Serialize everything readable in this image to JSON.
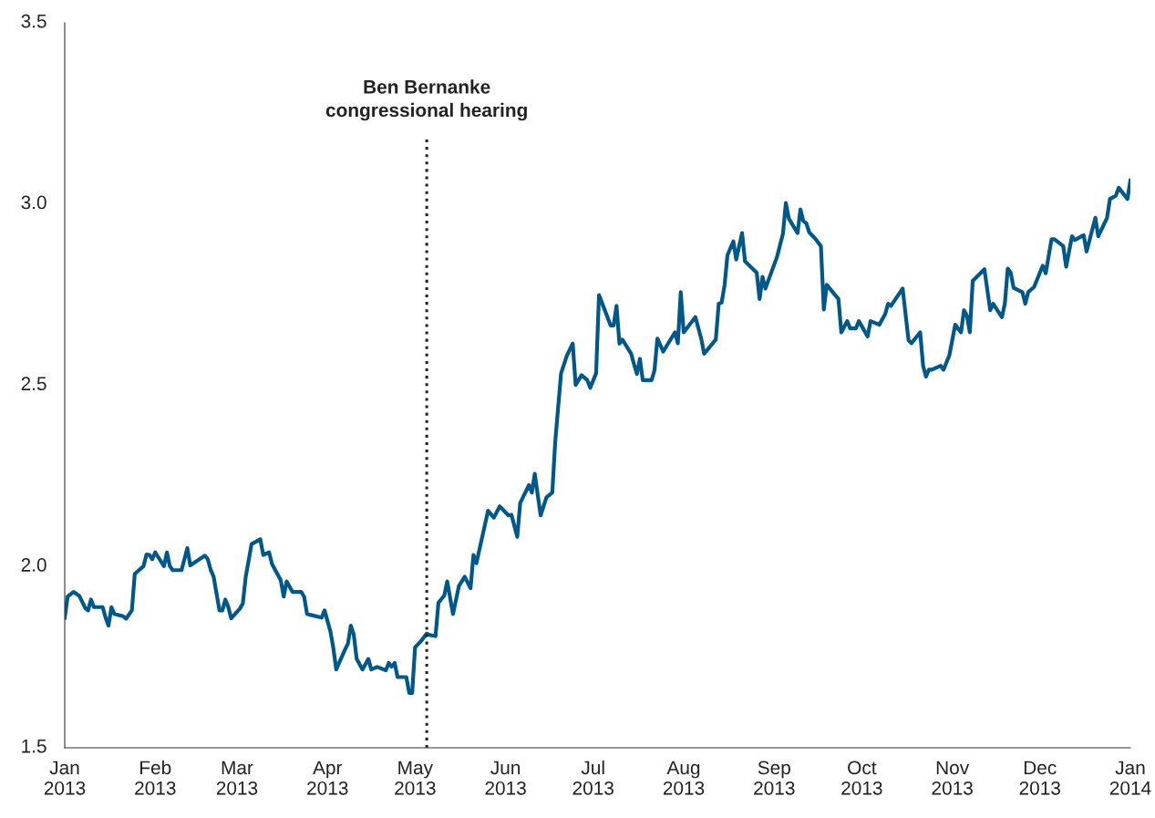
{
  "chart_data": {
    "type": "line",
    "x": [
      "2013-01-01",
      "2013-01-02",
      "2013-01-04",
      "2013-01-06",
      "2013-01-08",
      "2013-01-09",
      "2013-01-10",
      "2013-01-11",
      "2013-01-14",
      "2013-01-15",
      "2013-01-16",
      "2013-01-17",
      "2013-01-18",
      "2013-01-21",
      "2013-01-22",
      "2013-01-24",
      "2013-01-25",
      "2013-01-28",
      "2013-01-29",
      "2013-01-30",
      "2013-01-31",
      "2013-02-01",
      "2013-02-04",
      "2013-02-05",
      "2013-02-06",
      "2013-02-07",
      "2013-02-10",
      "2013-02-12",
      "2013-02-13",
      "2013-02-18",
      "2013-02-19",
      "2013-02-20",
      "2013-02-21",
      "2013-02-23",
      "2013-02-24",
      "2013-02-25",
      "2013-02-26",
      "2013-02-27",
      "2013-03-02",
      "2013-03-03",
      "2013-03-04",
      "2013-03-06",
      "2013-03-09",
      "2013-03-10",
      "2013-03-12",
      "2013-03-13",
      "2013-03-16",
      "2013-03-17",
      "2013-03-18",
      "2013-03-20",
      "2013-03-23",
      "2013-03-24",
      "2013-03-25",
      "2013-03-26",
      "2013-03-30",
      "2013-03-31",
      "2013-04-02",
      "2013-04-03",
      "2013-04-04",
      "2013-04-07",
      "2013-04-08",
      "2013-04-09",
      "2013-04-10",
      "2013-04-11",
      "2013-04-13",
      "2013-04-15",
      "2013-04-16",
      "2013-04-18",
      "2013-04-21",
      "2013-04-22",
      "2013-04-23",
      "2013-04-24",
      "2013-04-25",
      "2013-04-28",
      "2013-04-29",
      "2013-04-30",
      "2013-05-01",
      "2013-05-03",
      "2013-05-05",
      "2013-05-06",
      "2013-05-08",
      "2013-05-09",
      "2013-05-11",
      "2013-05-12",
      "2013-05-14",
      "2013-05-16",
      "2013-05-18",
      "2013-05-20",
      "2013-05-21",
      "2013-05-22",
      "2013-05-26",
      "2013-05-28",
      "2013-05-30",
      "2013-06-02",
      "2013-06-03",
      "2013-06-05",
      "2013-06-06",
      "2013-06-09",
      "2013-06-10",
      "2013-06-11",
      "2013-06-13",
      "2013-06-15",
      "2013-06-17",
      "2013-06-18",
      "2013-06-20",
      "2013-06-22",
      "2013-06-24",
      "2013-06-25",
      "2013-06-27",
      "2013-06-29",
      "2013-06-30",
      "2013-07-02",
      "2013-07-03",
      "2013-07-07",
      "2013-07-08",
      "2013-07-09",
      "2013-07-10",
      "2013-07-11",
      "2013-07-14",
      "2013-07-15",
      "2013-07-16",
      "2013-07-17",
      "2013-07-18",
      "2013-07-21",
      "2013-07-22",
      "2013-07-23",
      "2013-07-25",
      "2013-07-29",
      "2013-07-30",
      "2013-07-31",
      "2013-08-01",
      "2013-08-05",
      "2013-08-07",
      "2013-08-08",
      "2013-08-12",
      "2013-08-13",
      "2013-08-14",
      "2013-08-15",
      "2013-08-16",
      "2013-08-18",
      "2013-08-19",
      "2013-08-21",
      "2013-08-22",
      "2013-08-26",
      "2013-08-27",
      "2013-08-28",
      "2013-08-29",
      "2013-09-02",
      "2013-09-04",
      "2013-09-05",
      "2013-09-06",
      "2013-09-09",
      "2013-09-10",
      "2013-09-11",
      "2013-09-12",
      "2013-09-13",
      "2013-09-15",
      "2013-09-17",
      "2013-09-18",
      "2013-09-19",
      "2013-09-23",
      "2013-09-24",
      "2013-09-26",
      "2013-09-27",
      "2013-09-29",
      "2013-09-30",
      "2013-10-03",
      "2013-10-04",
      "2013-10-07",
      "2013-10-09",
      "2013-10-10",
      "2013-10-11",
      "2013-10-15",
      "2013-10-17",
      "2013-10-18",
      "2013-10-21",
      "2013-10-22",
      "2013-10-23",
      "2013-10-24",
      "2013-10-25",
      "2013-10-28",
      "2013-10-29",
      "2013-10-31",
      "2013-11-02",
      "2013-11-04",
      "2013-11-05",
      "2013-11-06",
      "2013-11-07",
      "2013-11-08",
      "2013-11-12",
      "2013-11-14",
      "2013-11-15",
      "2013-11-18",
      "2013-11-19",
      "2013-11-20",
      "2013-11-21",
      "2013-11-22",
      "2013-11-25",
      "2013-11-26",
      "2013-11-27",
      "2013-11-29",
      "2013-12-02",
      "2013-12-03",
      "2013-12-05",
      "2013-12-06",
      "2013-12-09",
      "2013-12-10",
      "2013-12-12",
      "2013-12-13",
      "2013-12-16",
      "2013-12-17",
      "2013-12-20",
      "2013-12-21",
      "2013-12-24",
      "2013-12-25",
      "2013-12-27",
      "2013-12-28",
      "2013-12-31",
      "2014-01-01"
    ],
    "series": [
      {
        "color": "#00588a",
        "values": [
          1.859,
          1.917,
          1.93,
          1.919,
          1.886,
          1.879,
          1.909,
          1.888,
          1.888,
          1.859,
          1.837,
          1.888,
          1.869,
          1.863,
          1.856,
          1.879,
          1.98,
          2.001,
          2.033,
          2.032,
          2.02,
          2.039,
          2.001,
          2.039,
          2.001,
          1.99,
          1.99,
          2.051,
          2.003,
          2.03,
          2.02,
          1.991,
          1.972,
          1.879,
          1.879,
          1.909,
          1.889,
          1.857,
          1.884,
          1.898,
          1.972,
          2.062,
          2.075,
          2.032,
          2.039,
          2.007,
          1.962,
          1.917,
          1.959,
          1.93,
          1.93,
          1.917,
          1.869,
          1.867,
          1.859,
          1.879,
          1.821,
          1.775,
          1.716,
          1.771,
          1.787,
          1.837,
          1.812,
          1.745,
          1.716,
          1.745,
          1.716,
          1.723,
          1.714,
          1.734,
          1.724,
          1.734,
          1.695,
          1.695,
          1.651,
          1.651,
          1.777,
          1.794,
          1.815,
          1.811,
          1.808,
          1.9,
          1.92,
          1.959,
          1.869,
          1.946,
          1.972,
          1.94,
          2.032,
          2.009,
          2.154,
          2.135,
          2.166,
          2.141,
          2.143,
          2.082,
          2.175,
          2.225,
          2.204,
          2.256,
          2.141,
          2.191,
          2.204,
          2.344,
          2.533,
          2.582,
          2.615,
          2.501,
          2.528,
          2.514,
          2.493,
          2.533,
          2.749,
          2.665,
          2.665,
          2.719,
          2.615,
          2.626,
          2.587,
          2.558,
          2.531,
          2.573,
          2.514,
          2.514,
          2.541,
          2.629,
          2.593,
          2.646,
          2.616,
          2.757,
          2.646,
          2.688,
          2.629,
          2.587,
          2.626,
          2.725,
          2.728,
          2.776,
          2.859,
          2.897,
          2.847,
          2.92,
          2.842,
          2.811,
          2.738,
          2.799,
          2.767,
          2.855,
          2.918,
          3.003,
          2.96,
          2.92,
          2.985,
          2.953,
          2.947,
          2.922,
          2.905,
          2.884,
          2.709,
          2.777,
          2.738,
          2.646,
          2.677,
          2.657,
          2.657,
          2.677,
          2.635,
          2.677,
          2.667,
          2.696,
          2.725,
          2.719,
          2.767,
          2.625,
          2.616,
          2.646,
          2.554,
          2.524,
          2.543,
          2.543,
          2.554,
          2.543,
          2.583,
          2.667,
          2.646,
          2.707,
          2.692,
          2.646,
          2.788,
          2.82,
          2.707,
          2.725,
          2.688,
          2.725,
          2.822,
          2.811,
          2.769,
          2.757,
          2.725,
          2.757,
          2.771,
          2.83,
          2.809,
          2.903,
          2.903,
          2.884,
          2.827,
          2.911,
          2.901,
          2.914,
          2.869,
          2.962,
          2.911,
          2.962,
          3.014,
          3.023,
          3.045,
          3.014,
          3.065
        ]
      }
    ],
    "xlim": [
      "2013-01-01",
      "2014-01-01"
    ],
    "xticks": [
      {
        "value": "2013-01-01",
        "label": "Jan\n2013"
      },
      {
        "value": "2013-02-01",
        "label": "Feb\n2013"
      },
      {
        "value": "2013-03-01",
        "label": "Mar\n2013"
      },
      {
        "value": "2013-04-01",
        "label": "Apr\n2013"
      },
      {
        "value": "2013-05-01",
        "label": "May\n2013"
      },
      {
        "value": "2013-06-01",
        "label": "Jun\n2013"
      },
      {
        "value": "2013-07-01",
        "label": "Jul\n2013"
      },
      {
        "value": "2013-08-01",
        "label": "Aug\n2013"
      },
      {
        "value": "2013-09-01",
        "label": "Sep\n2013"
      },
      {
        "value": "2013-10-01",
        "label": "Oct\n2013"
      },
      {
        "value": "2013-11-01",
        "label": "Nov\n2013"
      },
      {
        "value": "2013-12-01",
        "label": "Dec\n2013"
      },
      {
        "value": "2014-01-01",
        "label": "Jan\n2014"
      }
    ],
    "ylim": [
      1.5,
      3.5
    ],
    "yticks": [
      1.5,
      {
        "value": 2,
        "label": "2.0"
      },
      2.5,
      {
        "value": 3,
        "label": "3.0"
      },
      3.5
    ],
    "ref_lines": [
      {
        "axis": "x",
        "value": "2013-05-05",
        "label": "Ben Bernanke\ncongressional hearing",
        "color": "#222222",
        "line_style": "dotted"
      }
    ],
    "grid": false,
    "marker": "none",
    "line_style": "solid"
  }
}
